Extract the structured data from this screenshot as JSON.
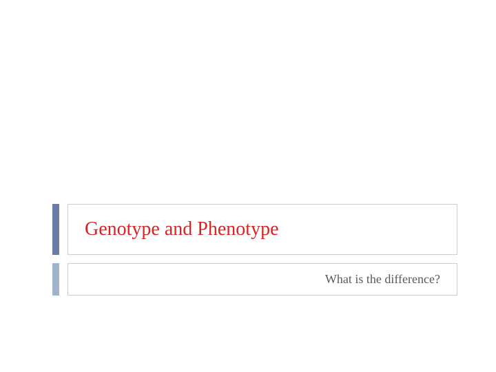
{
  "slide": {
    "title": "Genotype and Phenotype",
    "subtitle": "What is the difference?",
    "title_color": "#d82424",
    "subtitle_color": "#595959",
    "title_accent_color": "#6b7ba8",
    "subtitle_accent_color": "#9fb4cc",
    "border_color": "#cccccc",
    "background_color": "#ffffff",
    "title_fontsize": 28,
    "subtitle_fontsize": 18,
    "font_family": "Georgia"
  }
}
